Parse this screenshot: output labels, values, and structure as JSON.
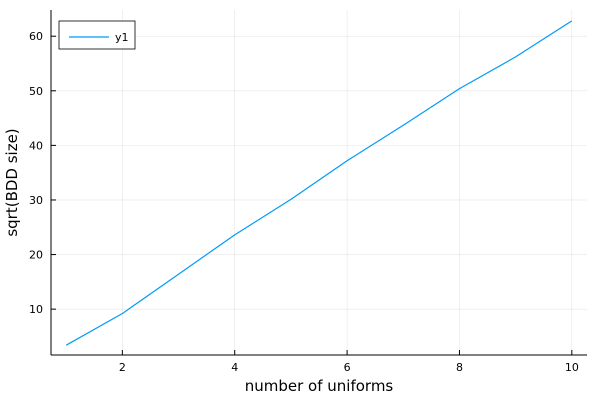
{
  "chart_data": {
    "type": "line",
    "title": "",
    "xlabel": "number of uniforms",
    "ylabel": "sqrt(BDD size)",
    "xlim": [
      0.73,
      10.27
    ],
    "ylim": [
      1.6,
      64.8
    ],
    "xticks": [
      2,
      4,
      6,
      8,
      10
    ],
    "yticks": [
      10,
      20,
      30,
      40,
      50,
      60
    ],
    "grid": true,
    "legend_position": "top-left",
    "series": [
      {
        "name": "y1",
        "color": "#009AF9",
        "x": [
          1,
          2,
          3,
          4,
          5,
          6,
          7,
          8,
          9,
          10
        ],
        "y": [
          3.4,
          9.2,
          16.4,
          23.6,
          30.1,
          37.2,
          43.7,
          50.4,
          56.2,
          62.8
        ]
      }
    ]
  }
}
